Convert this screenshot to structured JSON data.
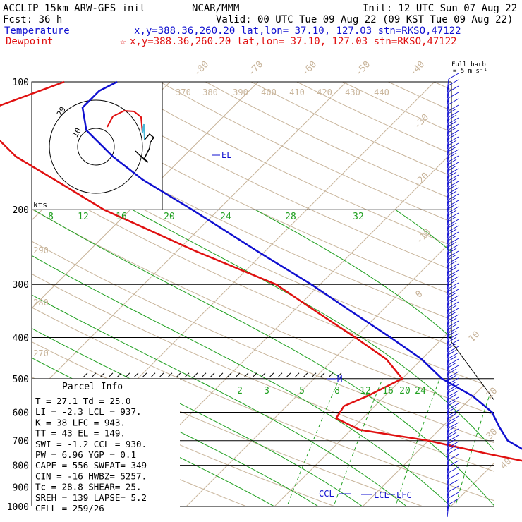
{
  "header": {
    "line1_left": "ACCLIP 15km ARW-GFS init",
    "line1_mid": "NCAR/MMM",
    "line1_right": "Init: 12 UTC Sun 07 Aug 22",
    "line2_left": "Fcst:   36 h",
    "line2_right": "Valid: 00 UTC Tue 09 Aug 22 (09 KST Tue 09 Aug 22)",
    "temp_label": "Temperature",
    "temp_info": "x,y=388.36,260.20    lat,lon= 37.10, 127.03  stn=RKSO,47122",
    "dew_label": "Dewpoint",
    "dew_marker": "☆",
    "dew_info": "x,y=388.36,260.20    lat,lon= 37.10, 127.03  stn=RKSO,47122",
    "colors": {
      "temperature": "#1010d0",
      "dewpoint": "#e01010",
      "isotherm": "#c8b49a",
      "mixing": "#20a020",
      "barb": "#1010d0"
    }
  },
  "barb_key": {
    "line1": "Full barb",
    "line2": "= 5 m s⁻¹"
  },
  "chart_data": {
    "type": "skew-t",
    "pressure_levels": [
      100,
      200,
      300,
      400,
      500,
      600,
      700,
      800,
      900,
      1000
    ],
    "pressure_labels": [
      "100",
      "200",
      "300",
      "400",
      "500",
      "600",
      "700",
      "800",
      "900",
      "1000"
    ],
    "isotherm_labels": [
      "-80",
      "-70",
      "-60",
      "-50",
      "-40",
      "-30",
      "-20",
      "-10",
      "0",
      "10",
      "20",
      "30",
      "40"
    ],
    "theta_labels": [
      "370",
      "380",
      "390",
      "400",
      "410",
      "420",
      "430",
      "440",
      "290",
      "280",
      "270"
    ],
    "mixing_ratio_upper": [
      "8",
      "12",
      "16",
      "20",
      "24",
      "28",
      "32"
    ],
    "mixing_ratio_lower": [
      "2",
      "3",
      "5",
      "8",
      "12",
      "16",
      "20",
      "24"
    ],
    "temperature_profile": [
      {
        "p": 1000,
        "t": 29.5
      },
      {
        "p": 950,
        "t": 26.0
      },
      {
        "p": 900,
        "t": 22.5
      },
      {
        "p": 850,
        "t": 19.5
      },
      {
        "p": 800,
        "t": 16.5
      },
      {
        "p": 750,
        "t": 13.0
      },
      {
        "p": 700,
        "t": 9.0
      },
      {
        "p": 650,
        "t": 6.5
      },
      {
        "p": 600,
        "t": 4.0
      },
      {
        "p": 550,
        "t": 0.0
      },
      {
        "p": 500,
        "t": -5.5
      },
      {
        "p": 450,
        "t": -10.0
      },
      {
        "p": 400,
        "t": -16.0
      },
      {
        "p": 350,
        "t": -23.0
      },
      {
        "p": 300,
        "t": -31.0
      },
      {
        "p": 250,
        "t": -41.0
      },
      {
        "p": 200,
        "t": -53.0
      },
      {
        "p": 170,
        "t": -62.0
      },
      {
        "p": 150,
        "t": -68.0
      },
      {
        "p": 130,
        "t": -74.0
      },
      {
        "p": 115,
        "t": -77.0
      },
      {
        "p": 105,
        "t": -77.0
      },
      {
        "p": 100,
        "t": -76.0
      }
    ],
    "dewpoint_profile": [
      {
        "p": 1000,
        "t": 25.0
      },
      {
        "p": 950,
        "t": 23.5
      },
      {
        "p": 900,
        "t": 22.0
      },
      {
        "p": 850,
        "t": 19.5
      },
      {
        "p": 800,
        "t": 16.0
      },
      {
        "p": 750,
        "t": 8.0
      },
      {
        "p": 700,
        "t": 0.0
      },
      {
        "p": 660,
        "t": -9.0
      },
      {
        "p": 620,
        "t": -13.0
      },
      {
        "p": 580,
        "t": -13.5
      },
      {
        "p": 550,
        "t": -12.0
      },
      {
        "p": 500,
        "t": -10.0
      },
      {
        "p": 450,
        "t": -14.0
      },
      {
        "p": 400,
        "t": -20.0
      },
      {
        "p": 350,
        "t": -27.0
      },
      {
        "p": 300,
        "t": -35.0
      },
      {
        "p": 250,
        "t": -48.0
      },
      {
        "p": 200,
        "t": -63.0
      },
      {
        "p": 170,
        "t": -72.0
      },
      {
        "p": 150,
        "t": -79.0
      },
      {
        "p": 130,
        "t": -85.0
      },
      {
        "p": 115,
        "t": -87.0
      },
      {
        "p": 100,
        "t": -82.0
      }
    ],
    "level_markers": [
      {
        "label": "EL",
        "p": 149
      },
      {
        "label": "M",
        "p": 500
      },
      {
        "label": "CCL",
        "p": 930
      },
      {
        "label": "LCL",
        "p": 937
      },
      {
        "label": "LFC",
        "p": 943
      }
    ]
  },
  "hodograph": {
    "ring_labels": [
      "10",
      "20"
    ],
    "units": "kts"
  },
  "parcel": {
    "title": "Parcel Info",
    "rows": [
      "T  =   27.1  Td =  25.0",
      "LI =   -2.3  LCL =  937.",
      "K  =     38  LFC =  943.",
      "TT =     43  EL  =  149.",
      "SWI =  -1.2  CCL =  930.",
      "PW =   6.96  YGP =   0.1",
      "CAPE =  556  SWEAT=  349",
      "CIN =   -16  HWBZ= 5257.",
      "Tc =   28.8  SHEAR=  25.",
      "SREH =  139  LAPSE=  5.2",
      "CELL = 259/26"
    ]
  }
}
